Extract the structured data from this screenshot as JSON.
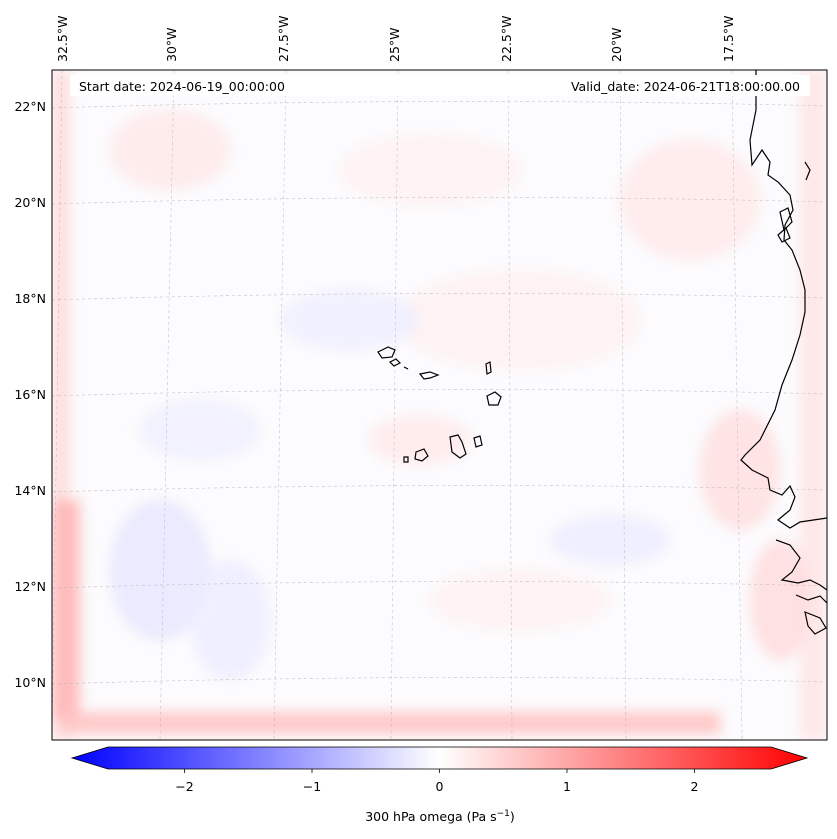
{
  "header": {
    "start_date": "Start date: 2024-06-19_00:00:00",
    "valid_date": "Valid_date: 2024-06-21T18:00:00.00"
  },
  "map": {
    "field": "300 hPa omega",
    "lon_labels": [
      "32.5°W",
      "30°W",
      "27.5°W",
      "25°W",
      "22.5°W",
      "20°W",
      "17.5°W"
    ],
    "lat_labels": [
      "22°N",
      "20°N",
      "18°N",
      "16°N",
      "14°N",
      "12°N",
      "10°N"
    ],
    "gridlines": true,
    "coastline_color": "#000000"
  },
  "colorbar": {
    "ticks": [
      "−2",
      "−1",
      "0",
      "1",
      "2"
    ],
    "tick_values": [
      -2,
      -1,
      0,
      1,
      2
    ],
    "range": [
      -2.6,
      2.6
    ],
    "extend": "both",
    "colormap": "bwr",
    "label": "300 hPa omega (Pa s",
    "label_sup": "−1",
    "label_end": ")"
  },
  "colors": {
    "negative": "#0000ff",
    "zero": "#ffffff",
    "positive": "#ff0000"
  }
}
